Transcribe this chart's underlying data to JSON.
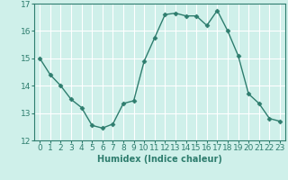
{
  "x": [
    0,
    1,
    2,
    3,
    4,
    5,
    6,
    7,
    8,
    9,
    10,
    11,
    12,
    13,
    14,
    15,
    16,
    17,
    18,
    19,
    20,
    21,
    22,
    23
  ],
  "y": [
    15.0,
    14.4,
    14.0,
    13.5,
    13.2,
    12.55,
    12.45,
    12.6,
    13.35,
    13.45,
    14.9,
    15.75,
    16.6,
    16.65,
    16.55,
    16.55,
    16.2,
    16.75,
    16.0,
    15.1,
    13.7,
    13.35,
    12.8,
    12.7
  ],
  "line_color": "#2e7d6e",
  "marker": "D",
  "marker_size": 2.5,
  "linewidth": 1.0,
  "xlabel": "Humidex (Indice chaleur)",
  "xlim": [
    -0.5,
    23.5
  ],
  "ylim": [
    12,
    17
  ],
  "yticks": [
    12,
    13,
    14,
    15,
    16,
    17
  ],
  "xticks": [
    0,
    1,
    2,
    3,
    4,
    5,
    6,
    7,
    8,
    9,
    10,
    11,
    12,
    13,
    14,
    15,
    16,
    17,
    18,
    19,
    20,
    21,
    22,
    23
  ],
  "bg_color": "#cff0ea",
  "grid_color": "#ffffff",
  "tick_color": "#2e7d6e",
  "label_color": "#2e7d6e",
  "xlabel_fontsize": 7,
  "tick_fontsize": 6.5
}
